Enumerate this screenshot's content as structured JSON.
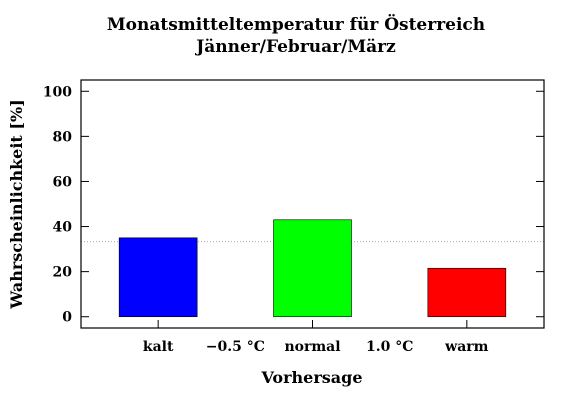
{
  "chart_data": {
    "type": "bar",
    "title": "Monatsmitteltemperatur für Österreich",
    "subtitle": "Jänner/Februar/März",
    "xlabel": "Vorhersage",
    "ylabel": "Wahrscheinlichkeit [%]",
    "ylim": [
      -5,
      105
    ],
    "yticks": [
      0,
      20,
      40,
      60,
      80,
      100
    ],
    "categories": [
      "kalt",
      "normal",
      "warm"
    ],
    "values": [
      35,
      43,
      21.5
    ],
    "colors": [
      "#0000ff",
      "#00ff00",
      "#ff0000"
    ],
    "threshold_labels": [
      "−0.5 °C",
      "1.0 °C"
    ],
    "reference_line": 33.3,
    "grid": false
  }
}
